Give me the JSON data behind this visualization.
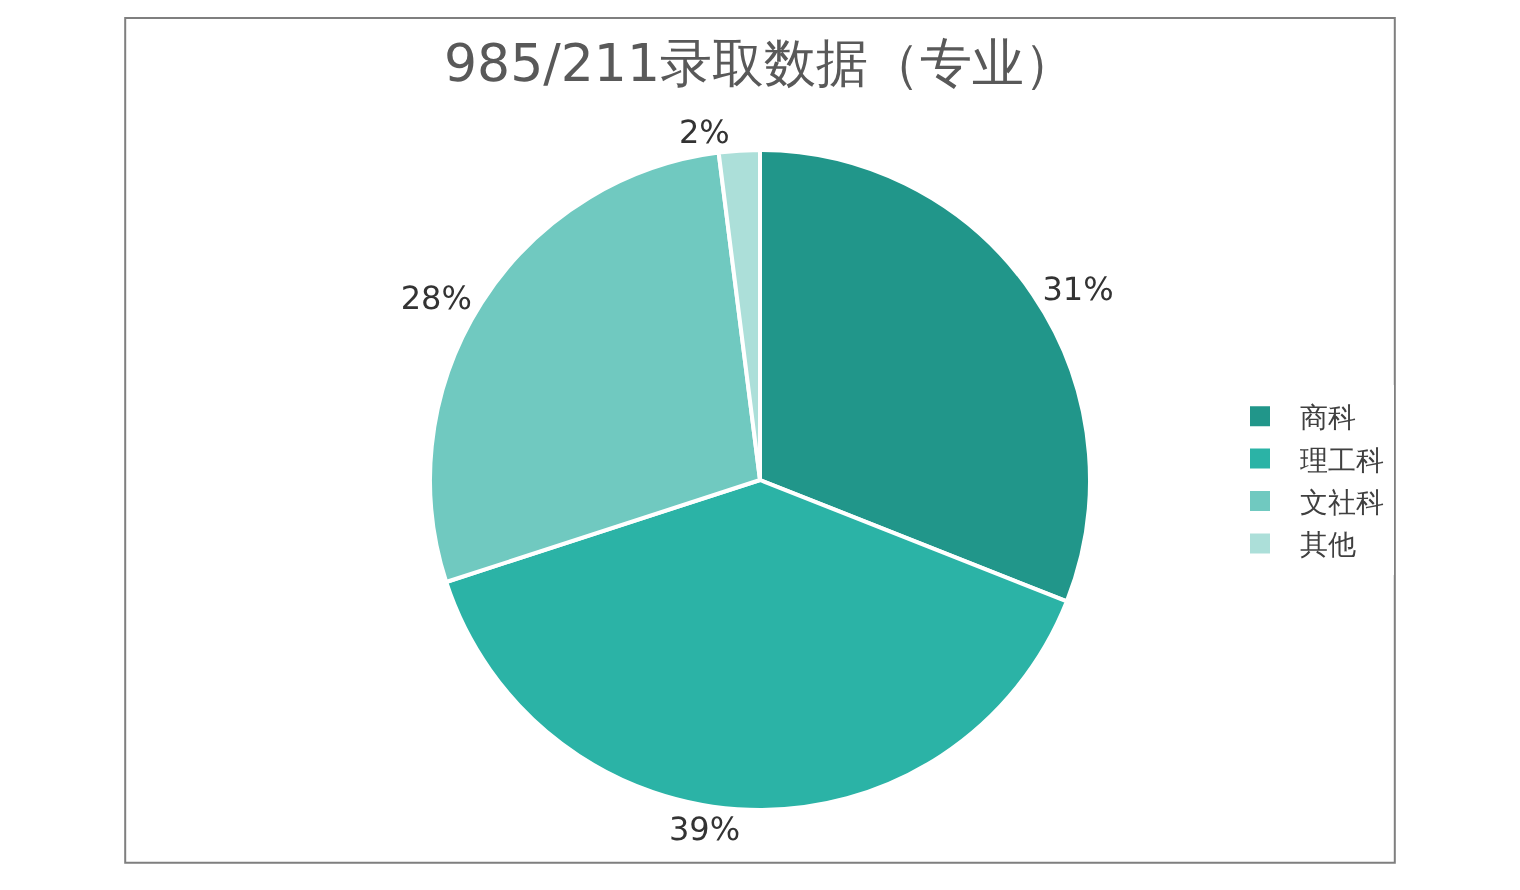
{
  "chart_data": {
    "type": "pie",
    "title": "985/211录取数据（专业）",
    "categories": [
      "商科",
      "理工科",
      "文社科",
      "其他"
    ],
    "values": [
      31,
      39,
      28,
      2
    ],
    "colors": [
      "#21968a",
      "#2bb3a6",
      "#70c9c0",
      "#acdfd9"
    ],
    "value_labels": [
      "31%",
      "39%",
      "28%",
      "2%"
    ],
    "legend": "right"
  }
}
